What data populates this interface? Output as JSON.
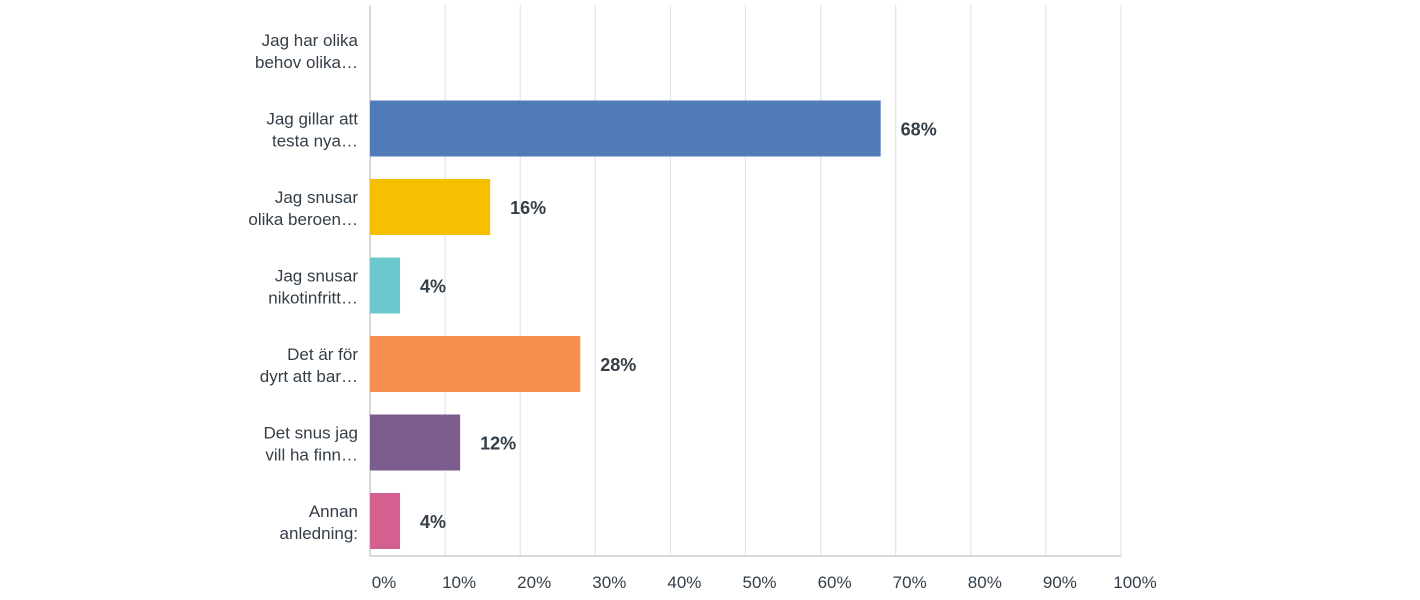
{
  "chart_data": {
    "type": "bar",
    "orientation": "horizontal",
    "categories": [
      [
        "Jag har olika",
        "behov olika…"
      ],
      [
        "Jag gillar att",
        "testa nya…"
      ],
      [
        "Jag snusar",
        "olika beroen…"
      ],
      [
        "Jag snusar",
        "nikotinfritt…"
      ],
      [
        "Det är för",
        "dyrt att bar…"
      ],
      [
        "Det snus jag",
        "vill ha finn…"
      ],
      [
        "Annan",
        "anledning:"
      ]
    ],
    "values": [
      0,
      68,
      16,
      4,
      28,
      12,
      4
    ],
    "value_labels": [
      "",
      "68%",
      "16%",
      "4%",
      "28%",
      "12%",
      "4%"
    ],
    "colors": [
      "#1d9fd3",
      "#507bb7",
      "#f6bf00",
      "#6bc8cc",
      "#f78f4e",
      "#7b5c8f",
      "#d3608f"
    ],
    "xlim": [
      0,
      100
    ],
    "x_ticks": [
      "0%",
      "10%",
      "20%",
      "30%",
      "40%",
      "50%",
      "60%",
      "70%",
      "80%",
      "90%",
      "100%"
    ],
    "grid": true,
    "title": "",
    "xlabel": "",
    "ylabel": ""
  }
}
